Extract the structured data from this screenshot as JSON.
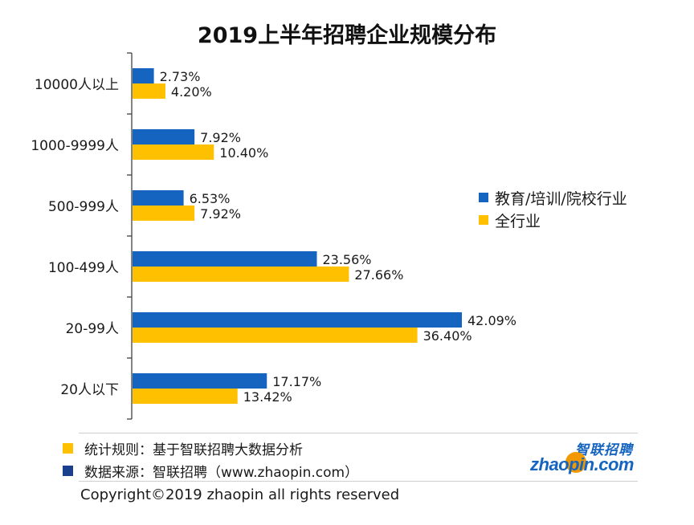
{
  "chart_data": {
    "type": "bar",
    "orientation": "horizontal",
    "title": "2019上半年招聘企业规模分布",
    "categories": [
      "10000人以上",
      "1000-9999人",
      "500-999人",
      "100-499人",
      "20-99人",
      "20人以下"
    ],
    "series": [
      {
        "name": "教育/培训/院校行业",
        "color": "#1565c0",
        "values": [
          2.73,
          7.92,
          6.53,
          23.56,
          42.09,
          17.17
        ]
      },
      {
        "name": "全行业",
        "color": "#ffc000",
        "values": [
          4.2,
          10.4,
          7.92,
          27.66,
          36.4,
          13.42
        ]
      }
    ],
    "data_labels": [
      [
        "2.73%",
        "7.92%",
        "6.53%",
        "23.56%",
        "42.09%",
        "17.17%"
      ],
      [
        "4.20%",
        "10.40%",
        "7.92%",
        "27.66%",
        "36.40%",
        "13.42%"
      ]
    ],
    "xlim": [
      0,
      50
    ],
    "grid": false,
    "legend_position": "right"
  },
  "notes": [
    {
      "color": "#ffc000",
      "text": "统计规则：基于智联招聘大数据分析"
    },
    {
      "color": "#1a3f8f",
      "text": "数据来源：智联招聘（www.zhaopin.com）"
    }
  ],
  "copyright": "Copyright©2019 zhaopin all rights reserved",
  "logo": {
    "cn": "智联招聘",
    "en": "zhaopin.com"
  }
}
